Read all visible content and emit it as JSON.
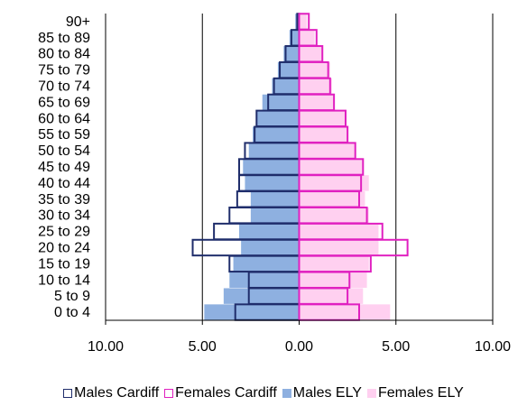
{
  "chart_data": {
    "type": "bar",
    "orientation": "horizontal",
    "title": "",
    "xlabel": "",
    "ylabel": "",
    "xlim": [
      -10,
      10
    ],
    "x_ticks": [
      "10.00",
      "5.00",
      "0.00",
      "5.00",
      "10.00"
    ],
    "x_tick_values": [
      -10,
      -5,
      0,
      5,
      10
    ],
    "grid": "vertical",
    "legend_position": "bottom",
    "categories": [
      "0 to 4",
      "5 to 9",
      "10 to 14",
      "15 to 19",
      "20 to 24",
      "25 to 29",
      "30 to 34",
      "35 to 39",
      "40 to 44",
      "45 to 49",
      "50 to 54",
      "55 to 59",
      "60 to 64",
      "65 to 69",
      "70 to 74",
      "75 to 79",
      "80 to 84",
      "85 to 89",
      "90+"
    ],
    "series": [
      {
        "name": "Males Cardiff",
        "style": "outline",
        "color": "#1f2d6b",
        "values": [
          -3.3,
          -2.6,
          -2.6,
          -3.6,
          -5.5,
          -4.4,
          -3.6,
          -3.2,
          -3.1,
          -3.1,
          -2.8,
          -2.3,
          -2.2,
          -1.6,
          -1.3,
          -1.0,
          -0.7,
          -0.4,
          -0.1
        ]
      },
      {
        "name": "Females Cardiff",
        "style": "outline",
        "color": "#e020c0",
        "values": [
          3.1,
          2.5,
          2.6,
          3.7,
          5.6,
          4.3,
          3.5,
          3.1,
          3.2,
          3.3,
          2.9,
          2.5,
          2.4,
          1.8,
          1.6,
          1.5,
          1.2,
          0.9,
          0.5
        ]
      },
      {
        "name": "Males ELY",
        "style": "filled",
        "color": "#8eb0e0",
        "values": [
          -4.9,
          -3.9,
          -3.6,
          -3.4,
          -3.0,
          -3.1,
          -2.5,
          -2.5,
          -2.8,
          -2.9,
          -2.6,
          -2.4,
          -2.2,
          -1.9,
          -1.4,
          -1.1,
          -0.8,
          -0.5,
          -0.2
        ]
      },
      {
        "name": "Females ELY",
        "style": "filled",
        "color": "#ffd0f0",
        "values": [
          4.7,
          3.3,
          3.5,
          3.6,
          4.1,
          4.1,
          3.6,
          3.4,
          3.6,
          3.3,
          2.9,
          2.5,
          2.4,
          1.8,
          1.7,
          1.6,
          1.2,
          0.8,
          0.4
        ]
      }
    ]
  }
}
